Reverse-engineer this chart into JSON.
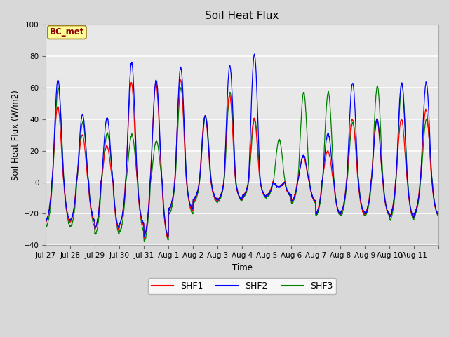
{
  "title": "Soil Heat Flux",
  "ylabel": "Soil Heat Flux (W/m2)",
  "xlabel": "Time",
  "ylim": [
    -40,
    100
  ],
  "yticks": [
    -40,
    -20,
    0,
    20,
    40,
    60,
    80,
    100
  ],
  "fig_bg_color": "#d8d8d8",
  "plot_bg_color": "#e8e8e8",
  "series_colors": [
    "red",
    "blue",
    "green"
  ],
  "series_labels": [
    "SHF1",
    "SHF2",
    "SHF3"
  ],
  "annotation_text": "BC_met",
  "annotation_color": "#8B0000",
  "annotation_bg": "#FFFF99",
  "x_tick_labels": [
    "Jul 27",
    "Jul 28",
    "Jul 29",
    "Jul 30",
    "Jul 31",
    "Aug 1",
    "Aug 2",
    "Aug 3",
    "Aug 4",
    "Aug 5",
    "Aug 6",
    "Aug 7",
    "Aug 8",
    "Aug 9",
    "Aug 10",
    "Aug 11"
  ],
  "n_days": 16,
  "pts_per_day": 144,
  "day_peaks_shf2": [
    65,
    43,
    41,
    76,
    65,
    73,
    42,
    74,
    81,
    -3,
    17,
    31,
    63,
    40,
    63,
    63
  ],
  "day_peaks_shf1": [
    48,
    30,
    23,
    63,
    63,
    65,
    42,
    55,
    40,
    -3,
    16,
    20,
    40,
    40,
    40,
    46
  ],
  "day_peaks_shf3": [
    60,
    38,
    31,
    30,
    26,
    60,
    42,
    57,
    40,
    27,
    57,
    57,
    38,
    61,
    62,
    40
  ],
  "day_mins_shf1": [
    -25,
    -25,
    -30,
    -27,
    -35,
    -18,
    -12,
    -11,
    -9,
    -8,
    -12,
    -20,
    -20,
    -20,
    -22,
    -20
  ],
  "day_mins_shf2": [
    -24,
    -24,
    -29,
    -26,
    -34,
    -17,
    -11,
    -11,
    -9,
    -8,
    -12,
    -20,
    -19,
    -20,
    -22,
    -20
  ],
  "day_mins_shf3": [
    -28,
    -28,
    -33,
    -31,
    -37,
    -20,
    -13,
    -12,
    -10,
    -9,
    -13,
    -21,
    -21,
    -21,
    -24,
    -21
  ]
}
